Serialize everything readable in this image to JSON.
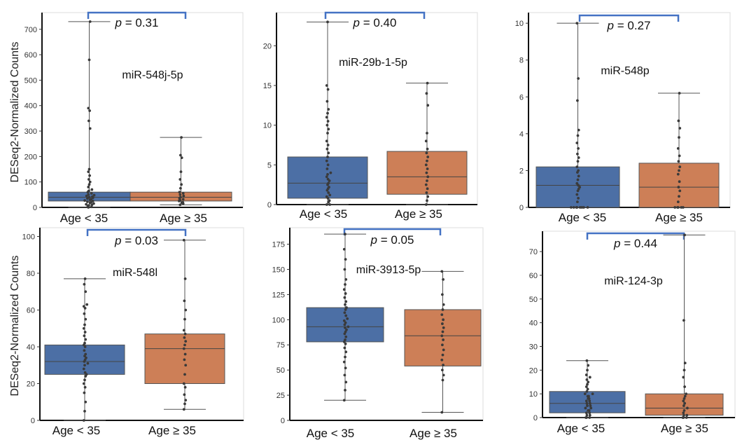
{
  "figure": {
    "ylabel_top": "DESeq2-Normalized Counts",
    "ylabel_bottom": "DESeq2-Normalized Counts"
  },
  "colors": {
    "group1": "#4c6fa5",
    "group2": "#cd7f57",
    "bracket": "#4472c4",
    "points": "#3a3a3a",
    "whisker": "#555555"
  },
  "chart_data": [
    {
      "type": "box",
      "title": "miR-548j-5p",
      "p_label": "p",
      "p_text": " = 0.31",
      "ylim": [
        0,
        760
      ],
      "yticks": [
        0,
        100,
        200,
        300,
        400,
        500,
        600,
        700
      ],
      "categories": [
        "Age < 35",
        "Age ≥ 35"
      ],
      "groups": [
        {
          "name": "Age < 35",
          "min": 0,
          "q1": 25,
          "median": 40,
          "q3": 60,
          "max": 730,
          "points": [
            0,
            2,
            5,
            8,
            10,
            12,
            15,
            18,
            20,
            22,
            25,
            27,
            30,
            32,
            35,
            38,
            40,
            42,
            45,
            48,
            50,
            55,
            60,
            65,
            70,
            80,
            90,
            100,
            110,
            125,
            140,
            150,
            310,
            340,
            380,
            390,
            580,
            730
          ]
        },
        {
          "name": "Age ≥ 35",
          "min": 10,
          "q1": 25,
          "median": 40,
          "q3": 60,
          "max": 275,
          "points": [
            10,
            15,
            18,
            20,
            25,
            28,
            32,
            35,
            40,
            45,
            50,
            55,
            60,
            75,
            90,
            110,
            140,
            195,
            205,
            275
          ]
        }
      ]
    },
    {
      "type": "box",
      "title": "miR-29b-1-5p",
      "p_label": "p",
      "p_text": " = 0.40",
      "ylim": [
        0,
        24
      ],
      "yticks": [
        0,
        5,
        10,
        15,
        20
      ],
      "categories": [
        "Age < 35",
        "Age ≥ 35"
      ],
      "groups": [
        {
          "name": "Age < 35",
          "min": 0,
          "q1": 0.8,
          "median": 2.7,
          "q3": 6.0,
          "max": 23,
          "points": [
            0,
            0,
            0.3,
            0.5,
            0.8,
            1,
            1.2,
            1.5,
            1.8,
            2,
            2.2,
            2.5,
            2.7,
            3,
            3.2,
            3.5,
            3.8,
            4,
            4.5,
            5,
            5.5,
            6,
            6.5,
            7,
            7.5,
            8,
            9,
            9.5,
            10,
            10.5,
            11,
            11.5,
            12,
            13,
            14.5,
            15,
            23
          ]
        },
        {
          "name": "Age ≥ 35",
          "min": 0,
          "q1": 1.3,
          "median": 3.5,
          "q3": 6.7,
          "max": 15.3,
          "points": [
            0,
            0.5,
            1,
            1.5,
            2,
            2.5,
            3,
            3.5,
            4,
            4.5,
            5,
            5.5,
            6,
            6.5,
            7,
            8,
            9,
            12.5,
            14,
            15.3
          ]
        }
      ]
    },
    {
      "type": "box",
      "title": "miR-548p",
      "p_label": "p",
      "p_text": " = 0.27",
      "ylim": [
        0,
        10.5
      ],
      "yticks": [
        0,
        2,
        4,
        6,
        8,
        10
      ],
      "categories": [
        "Age < 35",
        "Age ≥ 35"
      ],
      "groups": [
        {
          "name": "Age < 35",
          "min": 0,
          "q1": 0,
          "median": 1.2,
          "q3": 2.2,
          "max": 10,
          "points": [
            0,
            0,
            0,
            0,
            0,
            0,
            0,
            0,
            0.3,
            0.5,
            0.7,
            0.9,
            1,
            1.1,
            1.2,
            1.3,
            1.5,
            1.7,
            1.9,
            2,
            2.2,
            2.5,
            2.7,
            2.9,
            3.2,
            3.5,
            3.9,
            4.2,
            5.8,
            7,
            10
          ]
        },
        {
          "name": "Age ≥ 35",
          "min": 0,
          "q1": 0,
          "median": 1.1,
          "q3": 2.4,
          "max": 6.2,
          "points": [
            0,
            0,
            0,
            0,
            0,
            0.3,
            0.6,
            0.9,
            1.1,
            1.4,
            1.8,
            2,
            2.2,
            2.5,
            2.8,
            3.2,
            3.8,
            4.3,
            4.7,
            6.2
          ]
        }
      ]
    },
    {
      "type": "box",
      "title": "miR-548l",
      "p_label": "p",
      "p_text": " = 0.03",
      "ylim": [
        0,
        104
      ],
      "yticks": [
        0,
        20,
        40,
        60,
        80,
        100
      ],
      "categories": [
        "Age < 35",
        "Age ≥ 35"
      ],
      "groups": [
        {
          "name": "Age < 35",
          "min": 0,
          "q1": 25,
          "median": 32,
          "q3": 41,
          "max": 77,
          "points": [
            0,
            5,
            10,
            15,
            18,
            20,
            22,
            24,
            25,
            26,
            28,
            30,
            31,
            32,
            33,
            34,
            35,
            36,
            38,
            40,
            41,
            42,
            44,
            46,
            48,
            50,
            52,
            55,
            58,
            61,
            62,
            63,
            70,
            74,
            77
          ]
        },
        {
          "name": "Age ≥ 35",
          "min": 6,
          "q1": 20,
          "median": 39,
          "q3": 47,
          "max": 98,
          "points": [
            6,
            9,
            11,
            14,
            18,
            20,
            25,
            30,
            33,
            36,
            39,
            41,
            43,
            45,
            47,
            49,
            55,
            60,
            65,
            77,
            98
          ]
        }
      ]
    },
    {
      "type": "box",
      "title": "miR-3913-5p",
      "p_label": "p",
      "p_text": " = 0.05",
      "ylim": [
        0,
        190
      ],
      "yticks": [
        0,
        25,
        50,
        75,
        100,
        125,
        150,
        175
      ],
      "categories": [
        "Age < 35",
        "Age ≥ 35"
      ],
      "groups": [
        {
          "name": "Age < 35",
          "min": 20,
          "q1": 78,
          "median": 93,
          "q3": 112,
          "max": 185,
          "points": [
            20,
            30,
            38,
            45,
            52,
            58,
            63,
            68,
            72,
            76,
            78,
            80,
            83,
            86,
            88,
            90,
            92,
            93,
            95,
            97,
            99,
            101,
            104,
            107,
            110,
            112,
            115,
            118,
            122,
            126,
            130,
            135,
            140,
            150,
            160,
            170,
            185
          ]
        },
        {
          "name": "Age ≥ 35",
          "min": 8,
          "q1": 54,
          "median": 84,
          "q3": 110,
          "max": 148,
          "points": [
            8,
            40,
            45,
            50,
            55,
            60,
            65,
            70,
            75,
            80,
            84,
            88,
            92,
            96,
            100,
            105,
            110,
            115,
            125,
            140,
            148
          ]
        }
      ]
    },
    {
      "type": "box",
      "title": "miR-124-3p",
      "p_label": "p",
      "p_text": " = 0.44",
      "ylim": [
        0,
        78
      ],
      "yticks": [
        0,
        10,
        20,
        30,
        40,
        50,
        60,
        70
      ],
      "categories": [
        "Age < 35",
        "Age ≥ 35"
      ],
      "groups": [
        {
          "name": "Age < 35",
          "min": 0,
          "q1": 2,
          "median": 6,
          "q3": 11,
          "max": 24,
          "points": [
            0,
            0,
            0,
            1,
            1,
            2,
            2,
            3,
            3,
            4,
            4,
            5,
            5,
            6,
            6,
            7,
            7,
            8,
            8,
            9,
            9,
            10,
            10,
            11,
            12,
            13,
            14,
            15,
            16,
            17,
            18,
            20,
            22,
            24
          ]
        },
        {
          "name": "Age ≥ 35",
          "min": 0,
          "q1": 1,
          "median": 4,
          "q3": 10,
          "max": 77,
          "points": [
            0,
            0,
            0,
            1,
            1,
            2,
            3,
            4,
            5,
            6,
            7,
            8,
            9,
            10,
            13,
            17,
            20,
            23,
            41,
            77
          ]
        }
      ]
    }
  ]
}
